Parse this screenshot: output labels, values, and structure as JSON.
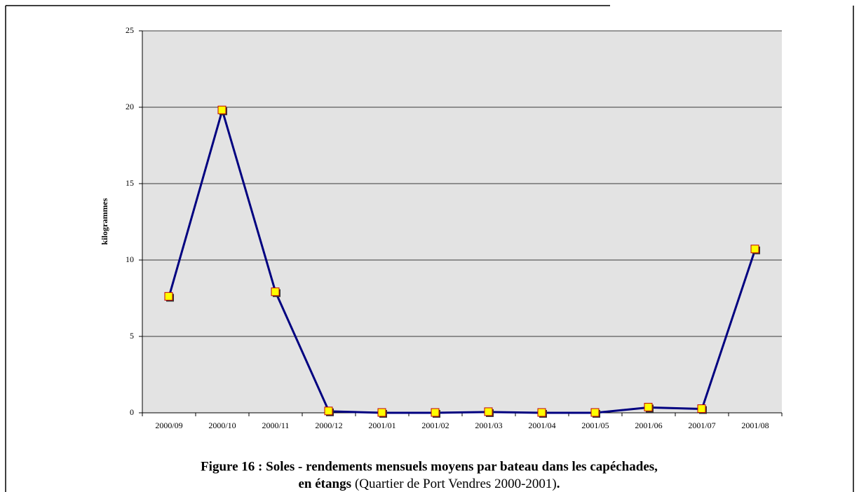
{
  "chart_data": {
    "type": "line",
    "y_label": "kilogrammes",
    "categories": [
      "2000/09",
      "2000/10",
      "2000/11",
      "2000/12",
      "2001/01",
      "2001/02",
      "2001/03",
      "2001/04",
      "2001/05",
      "2001/06",
      "2001/07",
      "2001/08"
    ],
    "series": [
      {
        "color": "#000080",
        "marker_color": "#ffff00",
        "values": [
          7.6,
          19.8,
          7.9,
          0.1,
          0,
          0,
          0.05,
          0,
          0,
          0.35,
          0.25,
          10.7
        ]
      }
    ],
    "ylim": [
      0,
      25
    ],
    "yticks": [
      0,
      5,
      10,
      15,
      20,
      25
    ],
    "grid": true,
    "caption": {
      "line1": "Figure 16 : Soles - rendements mensuels moyens par bateau dans les capéchades,",
      "bold": "en étangs",
      "normal": "(Quartier de Port Vendres 2000-2001)",
      "end": "."
    }
  }
}
